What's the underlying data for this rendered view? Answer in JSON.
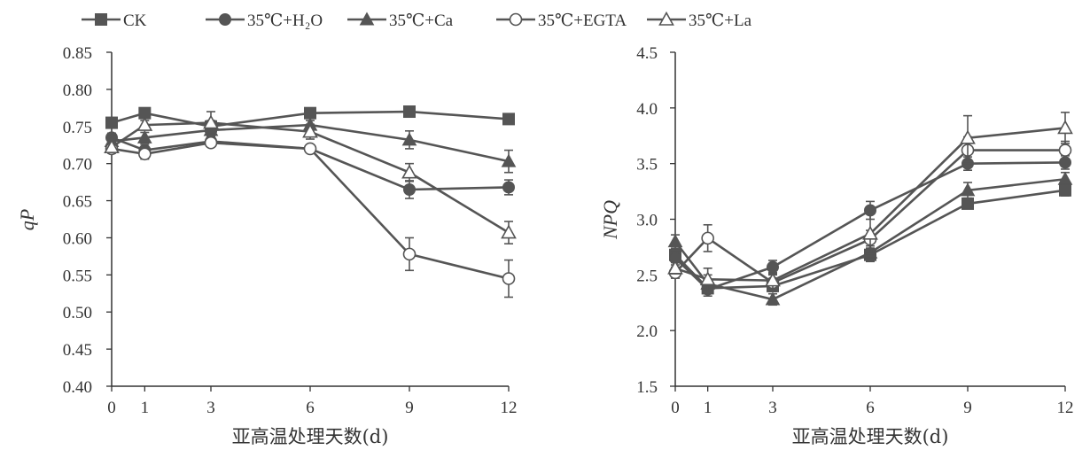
{
  "legend": [
    {
      "label": "CK",
      "marker": "square-filled"
    },
    {
      "label": "35℃+H₂O",
      "marker": "circle-filled"
    },
    {
      "label": "35℃+Ca",
      "marker": "triangle-filled"
    },
    {
      "label": "35℃+EGTA",
      "marker": "circle-open"
    },
    {
      "label": "35℃+La",
      "marker": "triangle-open"
    }
  ],
  "colors": {
    "line": "#555555",
    "axis": "#333333",
    "marker_fill": "#555555",
    "open_fill": "#ffffff"
  },
  "chart_data": [
    {
      "type": "line",
      "ylabel": "qP",
      "xlabel": "亚高温处理天数(d)",
      "x": [
        0,
        1,
        3,
        6,
        9,
        12
      ],
      "xticks": [
        0,
        1,
        3,
        6,
        9,
        12
      ],
      "xlim": [
        0,
        12
      ],
      "ylim": [
        0.4,
        0.85
      ],
      "yticks": [
        "0.40",
        "0.45",
        "0.50",
        "0.55",
        "0.60",
        "0.65",
        "0.70",
        "0.75",
        "0.80",
        "0.85"
      ],
      "series": [
        {
          "name": "CK",
          "values": [
            0.755,
            0.768,
            0.75,
            0.768,
            0.77,
            0.76
          ],
          "errors": [
            0.005,
            0.005,
            0.008,
            0.004,
            0.005,
            0.005
          ]
        },
        {
          "name": "35℃+H₂O",
          "values": [
            0.735,
            0.718,
            0.73,
            0.72,
            0.665,
            0.668
          ],
          "errors": [
            0.006,
            0.008,
            0.006,
            0.005,
            0.012,
            0.01
          ]
        },
        {
          "name": "35℃+Ca",
          "values": [
            0.73,
            0.735,
            0.745,
            0.752,
            0.732,
            0.703
          ],
          "errors": [
            0.008,
            0.007,
            0.008,
            0.006,
            0.012,
            0.015
          ]
        },
        {
          "name": "35℃+EGTA",
          "values": [
            0.72,
            0.713,
            0.728,
            0.72,
            0.578,
            0.545
          ],
          "errors": [
            0.006,
            0.007,
            0.005,
            0.005,
            0.022,
            0.025
          ]
        },
        {
          "name": "35℃+La",
          "values": [
            0.722,
            0.752,
            0.755,
            0.743,
            0.688,
            0.607
          ],
          "errors": [
            0.006,
            0.006,
            0.015,
            0.01,
            0.012,
            0.015
          ]
        }
      ]
    },
    {
      "type": "line",
      "ylabel": "NPQ",
      "xlabel": "亚高温处理天数(d)",
      "x": [
        0,
        1,
        3,
        6,
        9,
        12
      ],
      "xticks": [
        0,
        1,
        3,
        6,
        9,
        12
      ],
      "xlim": [
        0,
        12
      ],
      "ylim": [
        1.5,
        4.5
      ],
      "yticks": [
        "1.5",
        "2.0",
        "2.5",
        "3.0",
        "3.5",
        "4.0",
        "4.5"
      ],
      "series": [
        {
          "name": "CK",
          "values": [
            2.68,
            2.38,
            2.4,
            2.68,
            3.14,
            3.26
          ],
          "errors": [
            0.05,
            0.05,
            0.05,
            0.06,
            0.04,
            0.05
          ]
        },
        {
          "name": "35℃+H₂O",
          "values": [
            2.65,
            2.37,
            2.57,
            3.08,
            3.5,
            3.51
          ],
          "errors": [
            0.06,
            0.06,
            0.06,
            0.08,
            0.06,
            0.06
          ]
        },
        {
          "name": "35℃+Ca",
          "values": [
            2.8,
            2.42,
            2.28,
            2.7,
            3.26,
            3.36
          ],
          "errors": [
            0.06,
            0.08,
            0.05,
            0.06,
            0.07,
            0.06
          ]
        },
        {
          "name": "35℃+EGTA",
          "values": [
            2.52,
            2.83,
            2.43,
            2.82,
            3.62,
            3.62
          ],
          "errors": [
            0.05,
            0.12,
            0.07,
            0.08,
            0.12,
            0.08
          ]
        },
        {
          "name": "35℃+La",
          "values": [
            2.56,
            2.46,
            2.45,
            2.87,
            3.73,
            3.82
          ],
          "errors": [
            0.05,
            0.1,
            0.07,
            0.18,
            0.2,
            0.14
          ]
        }
      ]
    }
  ]
}
